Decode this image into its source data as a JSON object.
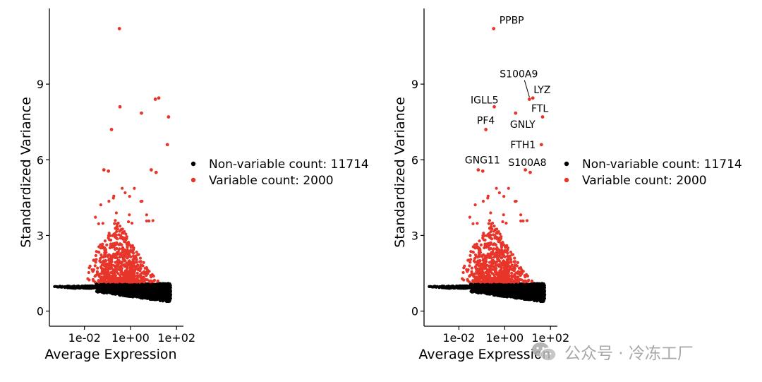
{
  "chart_data": [
    {
      "type": "scatter",
      "xlabel": "Average Expression",
      "ylabel": "Standardized Variance",
      "x_scale": "log",
      "xlim": [
        0.0003,
        200
      ],
      "ylim": [
        -0.6,
        12.0
      ],
      "x_ticks": [
        {
          "value": 0.01,
          "label": "1e-02"
        },
        {
          "value": 1,
          "label": "1e+00"
        },
        {
          "value": 100,
          "label": "1e+02"
        }
      ],
      "y_ticks": [
        {
          "value": 0,
          "label": "0"
        },
        {
          "value": 3,
          "label": "3"
        },
        {
          "value": 6,
          "label": "6"
        },
        {
          "value": 9,
          "label": "9"
        }
      ],
      "legend_position": "right",
      "series": [
        {
          "name": "Non-variable count: 11714",
          "color": "#000000",
          "count": 11714
        },
        {
          "name": "Variable count: 2000",
          "color": "#E8352A",
          "count": 2000
        }
      ],
      "highlighted_points": [
        {
          "x": 0.33,
          "y": 11.2
        },
        {
          "x": 12.0,
          "y": 8.4
        },
        {
          "x": 17.0,
          "y": 8.45
        },
        {
          "x": 0.35,
          "y": 8.1
        },
        {
          "x": 3.0,
          "y": 7.85
        },
        {
          "x": 45.0,
          "y": 7.7
        },
        {
          "x": 0.15,
          "y": 7.2
        },
        {
          "x": 40.0,
          "y": 6.6
        },
        {
          "x": 0.07,
          "y": 5.6
        },
        {
          "x": 0.11,
          "y": 5.55
        },
        {
          "x": 8.0,
          "y": 5.6
        },
        {
          "x": 13.0,
          "y": 5.5
        }
      ],
      "labels": []
    },
    {
      "type": "scatter",
      "xlabel": "Average Expression",
      "ylabel": "Standardized Variance",
      "x_scale": "log",
      "xlim": [
        0.0003,
        200
      ],
      "ylim": [
        -0.6,
        12.0
      ],
      "x_ticks": [
        {
          "value": 0.01,
          "label": "1e-02"
        },
        {
          "value": 1,
          "label": "1e+00"
        },
        {
          "value": 100,
          "label": "1e+02"
        }
      ],
      "y_ticks": [
        {
          "value": 0,
          "label": "0"
        },
        {
          "value": 3,
          "label": "3"
        },
        {
          "value": 6,
          "label": "6"
        },
        {
          "value": 9,
          "label": "9"
        }
      ],
      "legend_position": "right",
      "series": [
        {
          "name": "Non-variable count: 11714",
          "color": "#000000",
          "count": 11714
        },
        {
          "name": "Variable count: 2000",
          "color": "#E8352A",
          "count": 2000
        }
      ],
      "highlighted_points": [
        {
          "x": 0.33,
          "y": 11.2
        },
        {
          "x": 12.0,
          "y": 8.4
        },
        {
          "x": 17.0,
          "y": 8.45
        },
        {
          "x": 0.35,
          "y": 8.1
        },
        {
          "x": 3.0,
          "y": 7.85
        },
        {
          "x": 45.0,
          "y": 7.7
        },
        {
          "x": 0.15,
          "y": 7.2
        },
        {
          "x": 40.0,
          "y": 6.6
        },
        {
          "x": 0.07,
          "y": 5.6
        },
        {
          "x": 0.11,
          "y": 5.55
        },
        {
          "x": 8.0,
          "y": 5.6
        },
        {
          "x": 13.0,
          "y": 5.5
        }
      ],
      "labels": [
        {
          "gene": "PPBP",
          "x": 0.33,
          "y": 11.2
        },
        {
          "gene": "S100A9",
          "x": 12.0,
          "y": 8.4
        },
        {
          "gene": "LYZ",
          "x": 17.0,
          "y": 8.45
        },
        {
          "gene": "IGLL5",
          "x": 0.35,
          "y": 8.1
        },
        {
          "gene": "FTL",
          "x": 45.0,
          "y": 7.7
        },
        {
          "gene": "GNLY",
          "x": 3.0,
          "y": 7.85
        },
        {
          "gene": "PF4",
          "x": 0.15,
          "y": 7.2
        },
        {
          "gene": "FTH1",
          "x": 40.0,
          "y": 6.6
        },
        {
          "gene": "GNG11",
          "x": 0.07,
          "y": 5.6
        },
        {
          "gene": "S100A8",
          "x": 13.0,
          "y": 5.5
        }
      ]
    }
  ],
  "watermark": {
    "text": "公众号 · 冷冻工厂",
    "icon": "wechat-logo-icon"
  }
}
